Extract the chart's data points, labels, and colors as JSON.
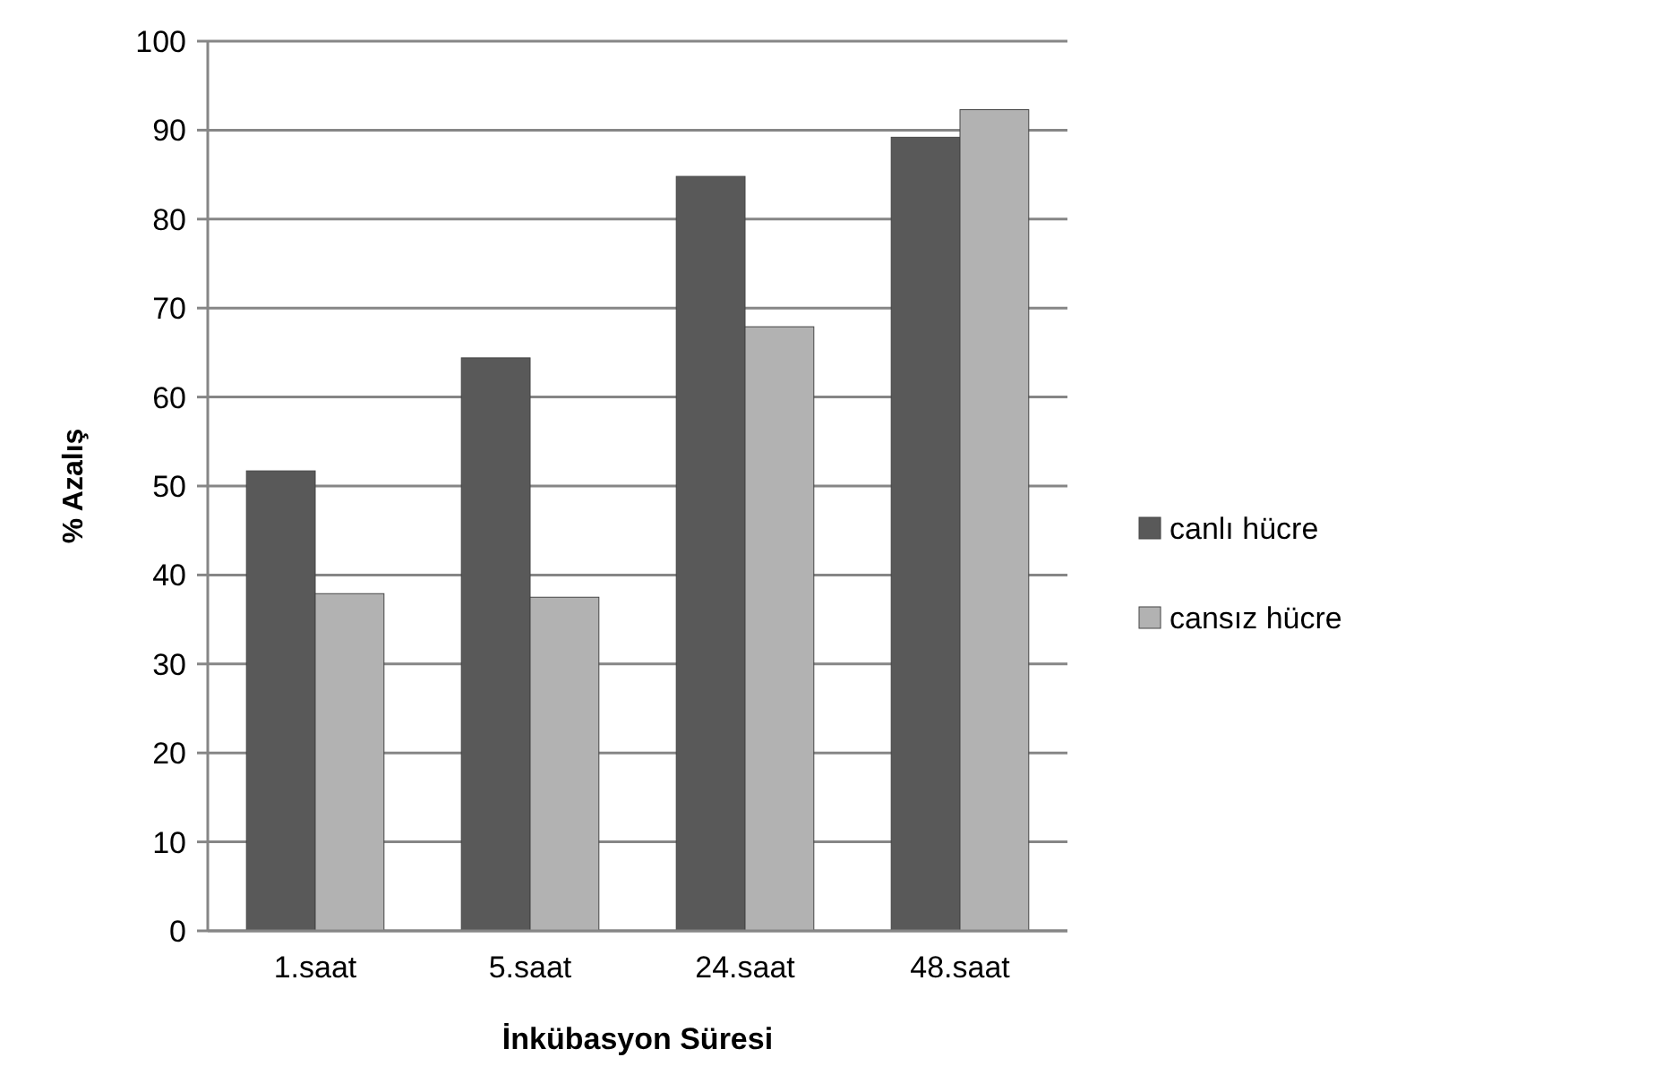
{
  "chart_data": {
    "type": "bar",
    "xlabel": "İnkübasyon Süresi",
    "ylabel": "% Azalış",
    "categories": [
      "1.saat",
      "5.saat",
      "24.saat",
      "48.saat"
    ],
    "series": [
      {
        "name": "canlı hücre",
        "color": "#595959",
        "values": [
          51.7,
          64.4,
          84.8,
          89.2
        ]
      },
      {
        "name": "cansız hücre",
        "color": "#b2b2b2",
        "values": [
          37.9,
          37.5,
          67.9,
          92.3
        ]
      }
    ],
    "ylim": [
      0,
      100
    ],
    "yticks": [
      0,
      10,
      20,
      30,
      40,
      50,
      60,
      70,
      80,
      90,
      100
    ],
    "grid": "y",
    "legend": "right"
  }
}
